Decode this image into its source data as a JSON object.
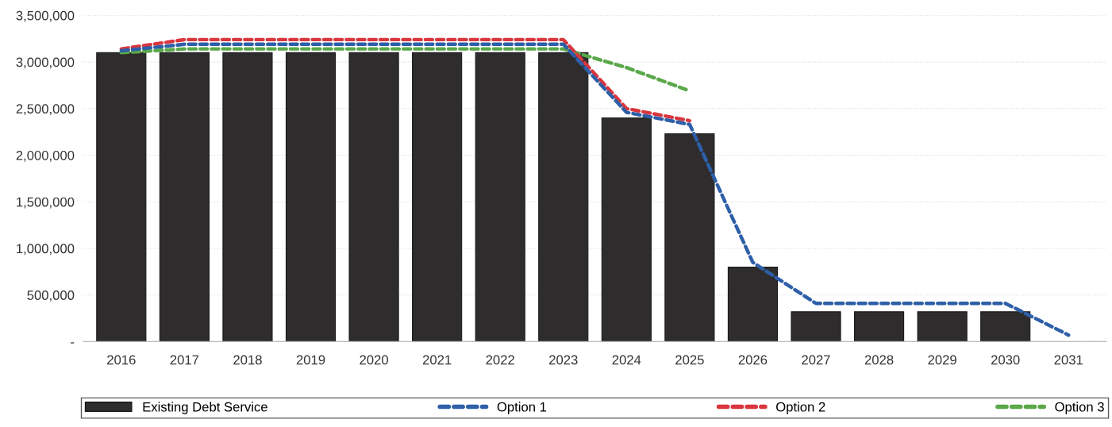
{
  "chart_data": {
    "type": "bar",
    "categories": [
      "2016",
      "2017",
      "2018",
      "2019",
      "2020",
      "2021",
      "2022",
      "2023",
      "2024",
      "2025",
      "2026",
      "2027",
      "2028",
      "2029",
      "2030",
      "2031"
    ],
    "series": [
      {
        "name": "Existing Debt Service",
        "color": "#2e2c2c",
        "values": [
          3100000,
          3100000,
          3100000,
          3100000,
          3100000,
          3100000,
          3100000,
          3100000,
          2400000,
          2230000,
          800000,
          320000,
          320000,
          320000,
          320000,
          null
        ]
      },
      {
        "name": "Option 1",
        "type": "line",
        "color": "#2e5fa8",
        "values": [
          3120000,
          3190000,
          3190000,
          3190000,
          3190000,
          3190000,
          3190000,
          3190000,
          2460000,
          2330000,
          850000,
          410000,
          410000,
          410000,
          410000,
          70000
        ]
      },
      {
        "name": "Option 2",
        "type": "line",
        "color": "#d9363e",
        "values": [
          3140000,
          3240000,
          3240000,
          3240000,
          3240000,
          3240000,
          3240000,
          3240000,
          2500000,
          2370000,
          null,
          null,
          null,
          null,
          null,
          null
        ]
      },
      {
        "name": "Option 3",
        "type": "line",
        "color": "#5aa84a",
        "values": [
          3100000,
          3140000,
          3140000,
          3140000,
          3140000,
          3140000,
          3140000,
          3140000,
          2940000,
          2690000,
          null,
          null,
          null,
          null,
          null,
          null
        ]
      }
    ],
    "ylim": [
      0,
      3500000
    ],
    "yticks": [
      {
        "value": 0,
        "label": "-"
      },
      {
        "value": 500000,
        "label": "500,000"
      },
      {
        "value": 1000000,
        "label": "1,000,000"
      },
      {
        "value": 1500000,
        "label": "1,500,000"
      },
      {
        "value": 2000000,
        "label": "2,000,000"
      },
      {
        "value": 2500000,
        "label": "2,500,000"
      },
      {
        "value": 3000000,
        "label": "3,000,000"
      },
      {
        "value": 3500000,
        "label": "3,500,000"
      }
    ],
    "grid": "y",
    "legend": "bottom",
    "line_style": "dashed",
    "marker": "none"
  }
}
